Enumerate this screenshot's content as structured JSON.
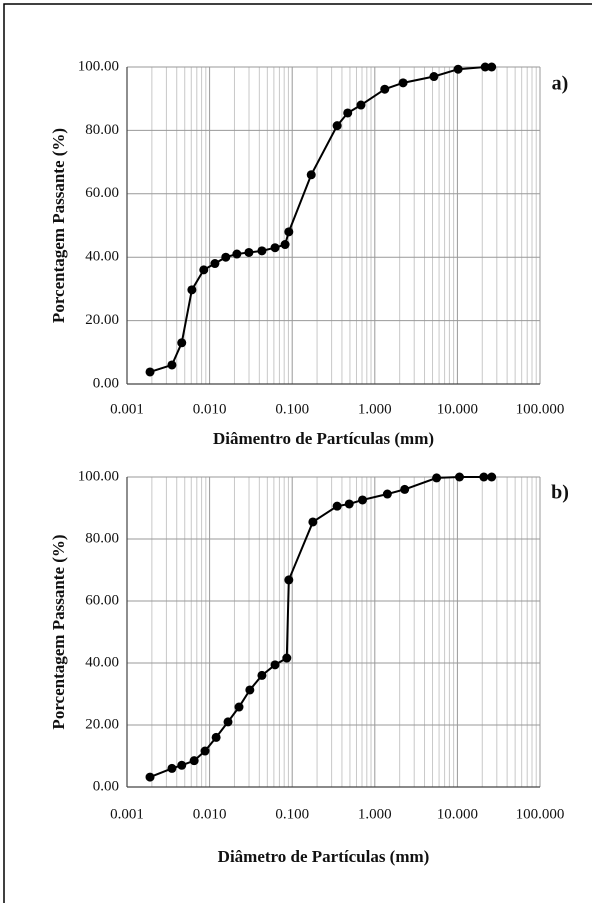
{
  "chart_data": [
    {
      "type": "line",
      "xlabel": "Diâmentro de Partículas (mm)",
      "ylabel": "Porcentagem Passante (%)",
      "annotation": "a)",
      "log_x": true,
      "grid": true,
      "color": "#000000",
      "x": [
        0.0019,
        0.0035,
        0.0046,
        0.0061,
        0.0085,
        0.0116,
        0.0157,
        0.0214,
        0.0299,
        0.043,
        0.062,
        0.082,
        0.091,
        0.17,
        0.35,
        0.47,
        0.68,
        1.32,
        2.2,
        5.2,
        10.2,
        21.7,
        26
      ],
      "values": [
        3.8,
        6,
        13,
        29.7,
        36,
        38,
        40,
        41,
        41.5,
        42,
        43,
        44,
        48,
        66,
        81.5,
        85.5,
        88,
        93,
        95,
        97,
        99.3,
        100,
        100
      ],
      "xlim": [
        0.001,
        100
      ],
      "ylim": [
        0,
        100
      ],
      "xticks": [
        0.001,
        {
          "value": 0.01,
          "label": "0.010"
        },
        {
          "value": 0.1,
          "label": "0.100"
        },
        {
          "value": 1,
          "label": "1.000"
        },
        {
          "value": 10,
          "label": "10.000"
        },
        {
          "value": 100,
          "label": "100.000"
        }
      ],
      "yticks": [
        {
          "value": 0,
          "label": "0.00"
        },
        {
          "value": 20,
          "label": "20.00"
        },
        {
          "value": 40,
          "label": "40.00"
        },
        {
          "value": 60,
          "label": "60.00"
        },
        {
          "value": 80,
          "label": "80.00"
        },
        {
          "value": 100,
          "label": "100.00"
        }
      ]
    },
    {
      "type": "line",
      "xlabel": "Diâmetro de Partículas (mm)",
      "ylabel": "Porcentagem Passante (%)",
      "annotation": "b)",
      "log_x": true,
      "grid": true,
      "color": "#000000",
      "x": [
        0.0019,
        0.0035,
        0.0046,
        0.0065,
        0.0088,
        0.012,
        0.0167,
        0.0227,
        0.0307,
        0.043,
        0.062,
        0.086,
        0.091,
        0.178,
        0.35,
        0.49,
        0.71,
        1.42,
        2.3,
        5.6,
        10.6,
        20.9,
        26
      ],
      "values": [
        3.2,
        6,
        7,
        8.5,
        11.6,
        16,
        21,
        25.8,
        31.3,
        36,
        39.4,
        41.6,
        66.8,
        85.5,
        90.6,
        91.3,
        92.6,
        94.5,
        96,
        99.7,
        100,
        100,
        100
      ],
      "xlim": [
        0.001,
        100
      ],
      "ylim": [
        0,
        100
      ],
      "xticks": [
        0.001,
        {
          "value": 0.01,
          "label": "0.010"
        },
        {
          "value": 0.1,
          "label": "0.100"
        },
        {
          "value": 1,
          "label": "1.000"
        },
        {
          "value": 10,
          "label": "10.000"
        },
        {
          "value": 100,
          "label": "100.000"
        }
      ],
      "yticks": [
        {
          "value": 0,
          "label": "0.00"
        },
        {
          "value": 20,
          "label": "20.00"
        },
        {
          "value": 40,
          "label": "40.00"
        },
        {
          "value": 60,
          "label": "60.00"
        },
        {
          "value": 80,
          "label": "80.00"
        },
        {
          "value": 100,
          "label": "100.00"
        }
      ]
    }
  ]
}
